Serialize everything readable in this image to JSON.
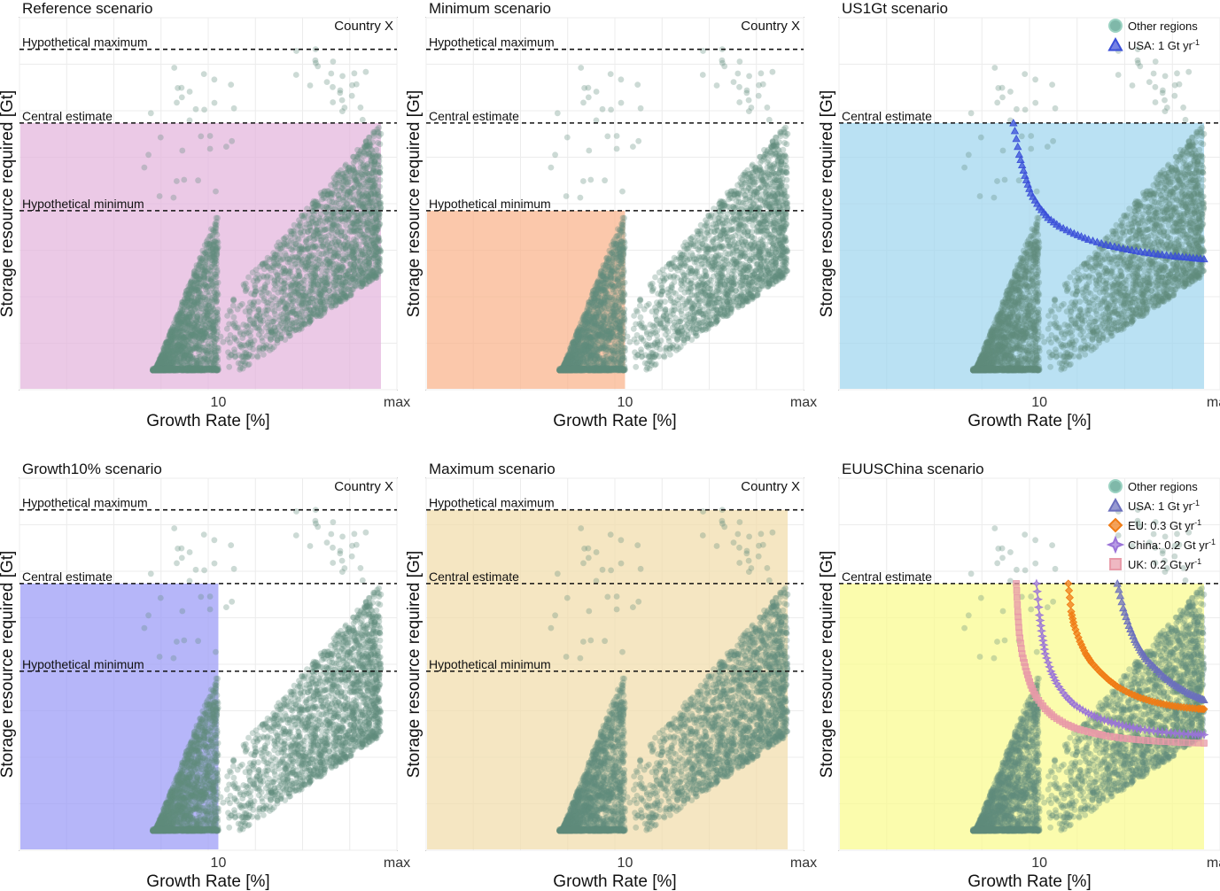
{
  "figure": {
    "x_axis_label": "Growth Rate [%]",
    "y_axis_label": "Storage resource required [Gt]",
    "x_tick_labels": [
      "10",
      "max"
    ],
    "hline_labels": {
      "max": "Hypothetical maximum",
      "central": "Central estimate",
      "min": "Hypothetical minimum"
    },
    "country_label": "Country X"
  },
  "chart_data": [
    {
      "type": "scatter",
      "title": "Reference scenario",
      "country_label": "Country X",
      "xlabel": "Growth Rate [%]",
      "ylabel": "Storage resource required [Gt]",
      "xlim": [
        0,
        100
      ],
      "ylim": [
        0,
        100
      ],
      "hlines": [
        {
          "name": "Hypothetical maximum",
          "y": 93
        },
        {
          "name": "Central estimate",
          "y": 72
        },
        {
          "name": "Hypothetical minimum",
          "y": 47
        }
      ],
      "shaded_region": {
        "x": [
          0,
          100
        ],
        "y": [
          0,
          72
        ],
        "color": "#e3b4dd"
      },
      "series": [
        {
          "name": "Other regions",
          "kind": "cloud"
        }
      ]
    },
    {
      "type": "scatter",
      "title": "Minimum scenario",
      "country_label": "Country X",
      "xlabel": "Growth Rate [%]",
      "ylabel": "Storage resource required [Gt]",
      "xlim": [
        0,
        100
      ],
      "ylim": [
        0,
        100
      ],
      "hlines": [
        {
          "name": "Hypothetical maximum",
          "y": 93
        },
        {
          "name": "Central estimate",
          "y": 72
        },
        {
          "name": "Hypothetical minimum",
          "y": 47
        }
      ],
      "shaded_region": {
        "x": [
          0,
          43
        ],
        "y": [
          0,
          47
        ],
        "color": "#f9b38b"
      },
      "series": [
        {
          "name": "Other regions",
          "kind": "cloud"
        }
      ]
    },
    {
      "type": "scatter",
      "title": "US1Gt scenario",
      "xlabel": "Growth Rate [%]",
      "ylabel": "Storage resource required [Gt]",
      "xlim": [
        0,
        100
      ],
      "ylim": [
        0,
        100
      ],
      "hlines": [
        {
          "name": "Central estimate",
          "y": 72
        }
      ],
      "shaded_region": {
        "x": [
          0,
          100
        ],
        "y": [
          0,
          72
        ],
        "color": "#9fd5ef"
      },
      "series": [
        {
          "name": "Other regions",
          "kind": "cloud",
          "legend": "Other regions",
          "legend_sup": ""
        },
        {
          "name": "USA",
          "kind": "curve",
          "legend": "USA: 1 Gt yr",
          "legend_sup": "-1",
          "color": "#3a4fd8",
          "marker": "triangle",
          "x": [
            34,
            36,
            38,
            40,
            43,
            46,
            50,
            55,
            60,
            66,
            72,
            78,
            84,
            90,
            95,
            100
          ],
          "y": [
            72,
            63,
            57,
            52,
            48,
            45,
            42.5,
            40.5,
            38.8,
            37.3,
            36.2,
            35.3,
            34.6,
            34.0,
            33.6,
            33.2
          ]
        }
      ]
    },
    {
      "type": "scatter",
      "title": "Growth10% scenario",
      "country_label": "Country X",
      "xlabel": "Growth Rate [%]",
      "ylabel": "Storage resource required [Gt]",
      "xlim": [
        0,
        100
      ],
      "ylim": [
        0,
        100
      ],
      "hlines": [
        {
          "name": "Hypothetical maximum",
          "y": 93
        },
        {
          "name": "Central estimate",
          "y": 72
        },
        {
          "name": "Hypothetical minimum",
          "y": 47
        }
      ],
      "shaded_region": {
        "x": [
          0,
          43
        ],
        "y": [
          0,
          72
        ],
        "color": "#9a9af6"
      },
      "series": [
        {
          "name": "Other regions",
          "kind": "cloud"
        }
      ]
    },
    {
      "type": "scatter",
      "title": "Maximum scenario",
      "country_label": "Country X",
      "xlabel": "Growth Rate [%]",
      "ylabel": "Storage resource required [Gt]",
      "xlim": [
        0,
        100
      ],
      "ylim": [
        0,
        100
      ],
      "hlines": [
        {
          "name": "Hypothetical maximum",
          "y": 93
        },
        {
          "name": "Central estimate",
          "y": 72
        },
        {
          "name": "Hypothetical minimum",
          "y": 47
        }
      ],
      "shaded_region": {
        "x": [
          0,
          100
        ],
        "y": [
          0,
          93
        ],
        "color": "#f1dcaa"
      },
      "series": [
        {
          "name": "Other regions",
          "kind": "cloud"
        }
      ]
    },
    {
      "type": "scatter",
      "title": "EUUSChina scenario",
      "xlabel": "Growth Rate [%]",
      "ylabel": "Storage resource required [Gt]",
      "xlim": [
        0,
        100
      ],
      "ylim": [
        0,
        100
      ],
      "hlines": [
        {
          "name": "Central estimate",
          "y": 72
        }
      ],
      "shaded_region": {
        "x": [
          0,
          100
        ],
        "y": [
          0,
          72
        ],
        "color": "#fafb8e"
      },
      "series": [
        {
          "name": "Other regions",
          "kind": "cloud",
          "legend": "Other regions",
          "legend_sup": ""
        },
        {
          "name": "USA",
          "kind": "curve",
          "legend": "USA: 1 Gt yr",
          "legend_sup": "-1",
          "color": "#6b6fbd",
          "marker": "triangle",
          "x": [
            70,
            72,
            74,
            76,
            78,
            80,
            83,
            86,
            89,
            92,
            95,
            98,
            100
          ],
          "y": [
            72,
            65,
            60,
            56,
            53,
            50.5,
            48,
            45.5,
            43.6,
            42,
            40.6,
            39.5,
            38.8
          ]
        },
        {
          "name": "EU",
          "kind": "curve",
          "legend": "EU: 0.3 Gt yr",
          "legend_sup": "-1",
          "color": "#f07b14",
          "marker": "diamond",
          "x": [
            53,
            54,
            55,
            57,
            59,
            61,
            64,
            67,
            70,
            74,
            78,
            82,
            86,
            90,
            94,
            98,
            100
          ],
          "y": [
            72,
            64,
            60,
            55.5,
            52,
            49.5,
            46.8,
            44.5,
            42.6,
            40.8,
            39.4,
            38.4,
            37.6,
            37.0,
            36.6,
            36.3,
            36.2
          ]
        },
        {
          "name": "China",
          "kind": "curve",
          "legend": "China: 0.2 Gt yr",
          "legend_sup": "-1",
          "color": "#9a73d8",
          "marker": "star",
          "x": [
            42,
            43,
            44,
            45,
            47,
            49,
            52,
            55,
            59,
            63,
            68,
            73,
            78,
            84,
            90,
            96,
            100
          ],
          "y": [
            72,
            63,
            57,
            52,
            47,
            43.5,
            40,
            37.5,
            35.4,
            33.8,
            32.4,
            31.3,
            30.5,
            29.8,
            29.3,
            29.0,
            28.9
          ]
        },
        {
          "name": "UK",
          "kind": "curve",
          "legend": "UK: 0.2 Gt yr",
          "legend_sup": "-1",
          "color": "#e89aa8",
          "marker": "square",
          "x": [
            35,
            35.5,
            36,
            37,
            38.5,
            40,
            42,
            45,
            48,
            52,
            56,
            61,
            66,
            72,
            78,
            85,
            92,
            100
          ],
          "y": [
            72,
            64,
            58,
            52,
            47,
            43,
            39.5,
            36.3,
            34,
            32,
            30.6,
            29.5,
            28.6,
            27.9,
            27.4,
            27.0,
            26.7,
            26.5
          ]
        }
      ]
    }
  ]
}
